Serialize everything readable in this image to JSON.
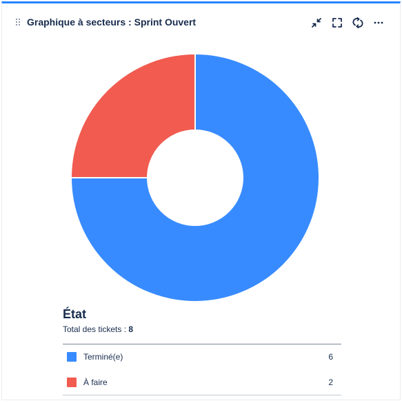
{
  "gadget": {
    "title": "Graphique à secteurs : Sprint Ouvert",
    "actions": [
      "minimize-icon",
      "fullscreen-icon",
      "refresh-icon",
      "more-icon"
    ]
  },
  "colors": {
    "accent": "#2684ff",
    "done": "#388bff",
    "todo": "#f15b50"
  },
  "legend": {
    "heading": "État",
    "total_label": "Total des tickets :",
    "total_value": "8"
  },
  "chart_data": {
    "type": "pie",
    "series": [
      {
        "name": "Terminé(e)",
        "value": 6,
        "color": "#388bff"
      },
      {
        "name": "À faire",
        "value": 2,
        "color": "#f15b50"
      }
    ],
    "total": 8
  }
}
